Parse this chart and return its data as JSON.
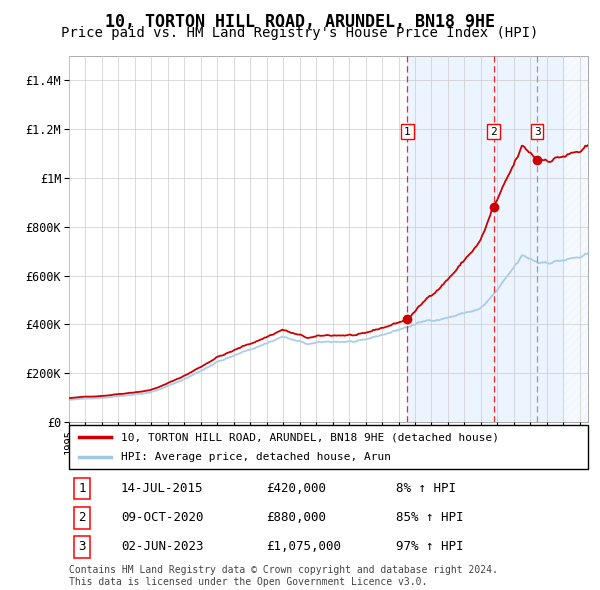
{
  "title": "10, TORTON HILL ROAD, ARUNDEL, BN18 9HE",
  "subtitle": "Price paid vs. HM Land Registry's House Price Index (HPI)",
  "title_fontsize": 12,
  "subtitle_fontsize": 10,
  "ylim": [
    0,
    1500000
  ],
  "yticks": [
    0,
    200000,
    400000,
    600000,
    800000,
    1000000,
    1200000,
    1400000
  ],
  "ytick_labels": [
    "£0",
    "£200K",
    "£400K",
    "£600K",
    "£800K",
    "£1M",
    "£1.2M",
    "£1.4M"
  ],
  "hpi_color": "#a0c8e8",
  "property_color": "#cc0000",
  "shaded_region_color": "#ddeeff",
  "transactions": [
    {
      "label": "1",
      "date": 2015.54,
      "price": 420000,
      "pct": "8%",
      "date_str": "14-JUL-2015"
    },
    {
      "label": "2",
      "date": 2020.77,
      "price": 880000,
      "pct": "85%",
      "date_str": "09-OCT-2020"
    },
    {
      "label": "3",
      "date": 2023.42,
      "price": 1075000,
      "pct": "97%",
      "date_str": "02-JUN-2023"
    }
  ],
  "legend_property": "10, TORTON HILL ROAD, ARUNDEL, BN18 9HE (detached house)",
  "legend_hpi": "HPI: Average price, detached house, Arun",
  "footer": "Contains HM Land Registry data © Crown copyright and database right 2024.\nThis data is licensed under the Open Government Licence v3.0.",
  "xmin": 1995,
  "xmax": 2026.5,
  "hatch_start": 2025.0
}
